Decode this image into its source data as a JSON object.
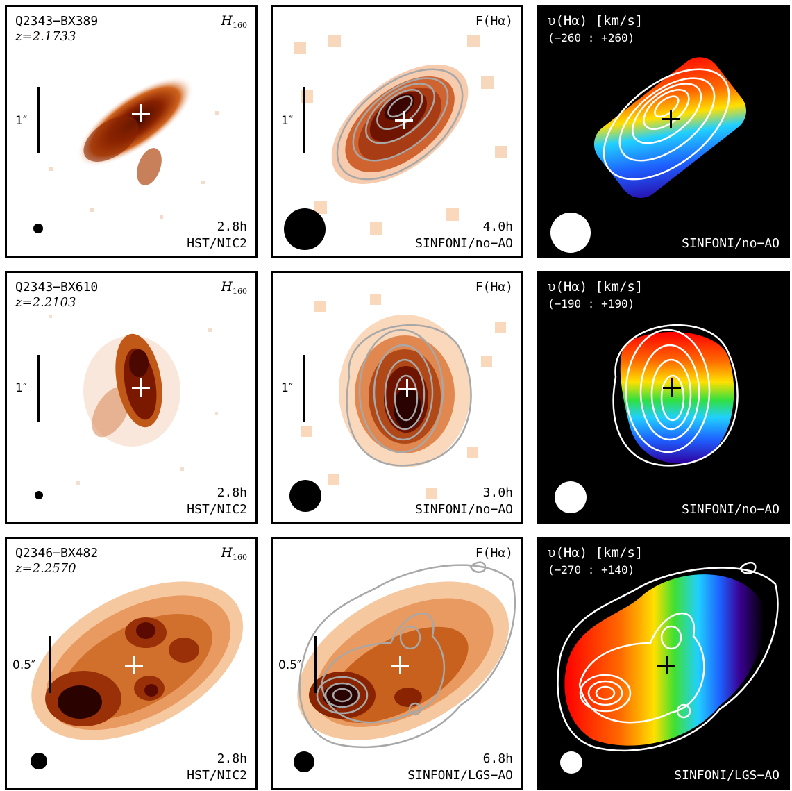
{
  "rows": [
    {
      "object": "Q2343−BX389",
      "redshift": "z=2.1733",
      "filter_name": "H",
      "filter_sub": "160",
      "scale_label": "1″",
      "hst_time": "2.8h",
      "hst_inst": "HST/NIC2",
      "flux_label": "F(Hα)",
      "sin_time": "4.0h",
      "sin_inst": "SINFONI/no−AO",
      "vel_label": "υ(Hα) [km/s]",
      "vel_range": "(−260 : +260)",
      "vel_inst": "SINFONI/no−AO"
    },
    {
      "object": "Q2343−BX610",
      "redshift": "z=2.2103",
      "filter_name": "H",
      "filter_sub": "160",
      "scale_label": "1″",
      "hst_time": "2.8h",
      "hst_inst": "HST/NIC2",
      "flux_label": "F(Hα)",
      "sin_time": "3.0h",
      "sin_inst": "SINFONI/no−AO",
      "vel_label": "υ(Hα) [km/s]",
      "vel_range": "(−190 : +190)",
      "vel_inst": "SINFONI/no−AO"
    },
    {
      "object": "Q2346−BX482",
      "redshift": "z=2.2570",
      "filter_name": "H",
      "filter_sub": "160",
      "scale_label": "0.5″",
      "hst_time": "2.8h",
      "hst_inst": "HST/NIC2",
      "flux_label": "F(Hα)",
      "sin_time": "6.8h",
      "sin_inst": "SINFONI/LGS−AO",
      "vel_label": "υ(Hα) [km/s]",
      "vel_range": "(−270 : +140)",
      "vel_inst": "SINFONI/LGS−AO"
    }
  ],
  "colors": {
    "flux_dark": "#5a0a00",
    "flux_mid": "#c8551e",
    "flux_light": "#f8c8a0",
    "contour_gray": "#a8a8a8",
    "contour_white": "#ffffff"
  }
}
